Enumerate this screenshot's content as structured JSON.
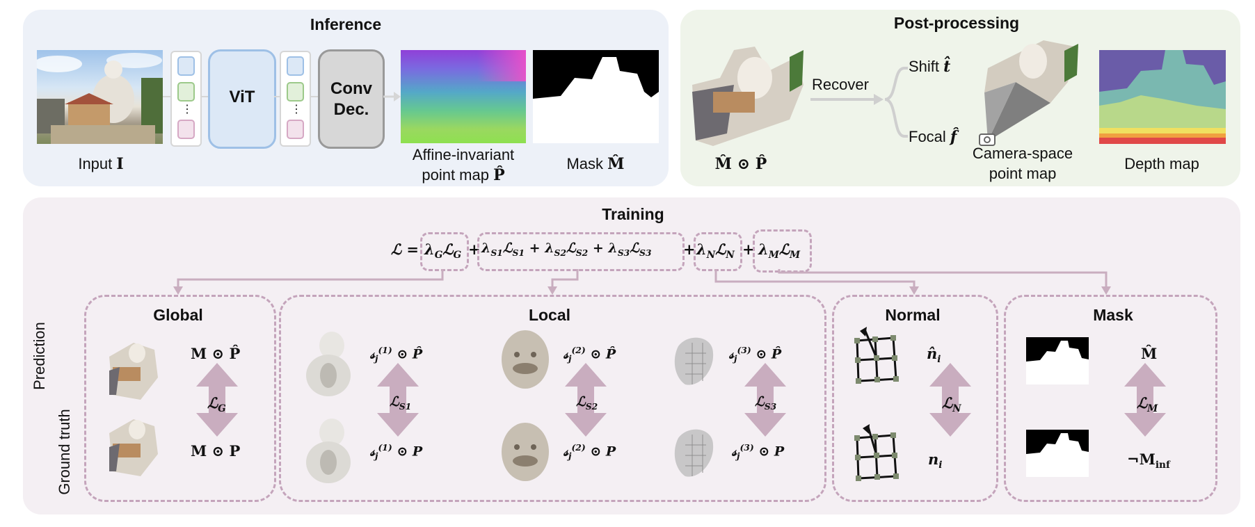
{
  "inference": {
    "title": "Inference",
    "input_label_text": "Input ",
    "input_label_sym": "I",
    "vit": "ViT",
    "conv_line1": "Conv",
    "conv_line2": "Dec.",
    "dots": "⋮",
    "affine_line1": "Affine-invariant",
    "affine_line2_text": "point map ",
    "affine_line2_sym": "P̂",
    "mask_label_text": "Mask ",
    "mask_label_sym": "M̂"
  },
  "post": {
    "title": "Post-processing",
    "masked_points": "M̂ ⊙ P̂",
    "recover": "Recover",
    "shift_text": "Shift ",
    "shift_sym": "t̂",
    "focal_text": "Focal ",
    "focal_sym": "f̂",
    "camera_line1": "Camera-space",
    "camera_line2": "point map",
    "depth": "Depth map"
  },
  "training": {
    "title": "Training",
    "loss_eq": {
      "lhs": "ℒ =",
      "g": "λ_Gℒ_G",
      "plus1": "+",
      "s_group": "λ_S1ℒ_S1 + λ_S2ℒ_S2 + λ_S3ℒ_S3",
      "plus2": "+",
      "n": "λ_Nℒ_N",
      "plus3": "+",
      "m": "λ_Mℒ_M"
    },
    "row_prediction": "Prediction",
    "row_ground_truth": "Ground truth",
    "global": {
      "title": "Global",
      "pred": "M ⊙ P̂",
      "gt": "M ⊙ P",
      "loss": "ℒ_G"
    },
    "local": {
      "title": "Local",
      "items": [
        {
          "pred": "𝓈_j^(1) ⊙ P̂",
          "gt": "𝓈_j^(1) ⊙ P",
          "loss": "ℒ_S1"
        },
        {
          "pred": "𝓈_j^(2) ⊙ P̂",
          "gt": "𝓈_j^(2) ⊙ P",
          "loss": "ℒ_S2"
        },
        {
          "pred": "𝓈_j^(3) ⊙ P̂",
          "gt": "𝓈_j^(3) ⊙ P",
          "loss": "ℒ_S3"
        }
      ]
    },
    "normal": {
      "title": "Normal",
      "pred": "n̂_i",
      "gt": "n_i",
      "loss": "ℒ_N"
    },
    "mask": {
      "title": "Mask",
      "pred": "M̂",
      "gt": "¬M_inf",
      "loss": "ℒ_M"
    }
  },
  "colors": {
    "inference_bg": "#edf1f8",
    "post_bg": "#eff4ea",
    "training_bg": "#f4eff3",
    "dashed": "#c4a4bb",
    "arrow": "#c9adbf",
    "vit_fill": "#dce8f6",
    "vit_stroke": "#9ec0e6",
    "conv_fill": "#d7d7d7",
    "conv_stroke": "#999999",
    "token_blue": "#9ec0e6",
    "token_green": "#9cc98a",
    "token_pink": "#d6a8c4"
  }
}
